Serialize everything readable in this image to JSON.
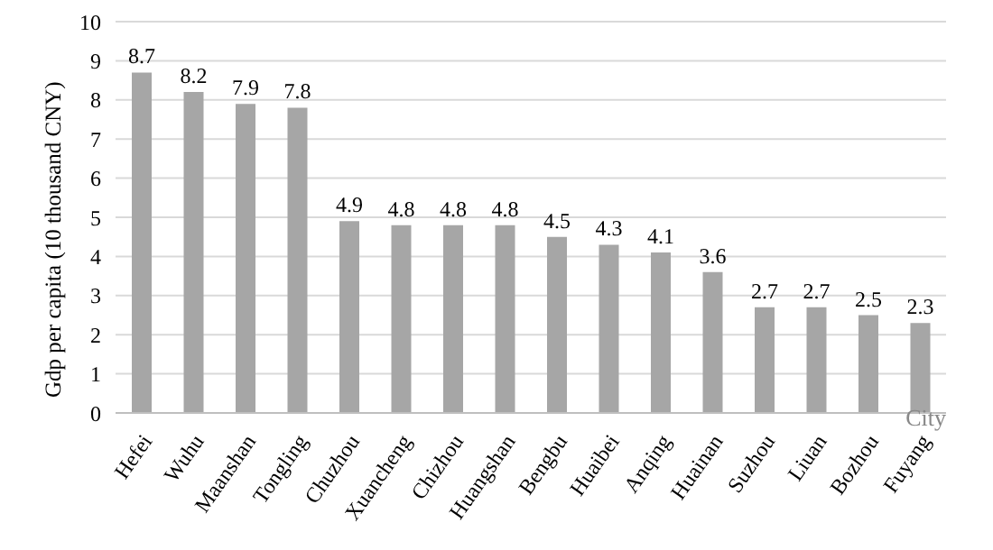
{
  "chart_data": {
    "type": "bar",
    "xlabel": "City",
    "ylabel": "Gdp per capita (10 thousand CNY)",
    "categories": [
      "Hefei",
      "Wuhu",
      "Maanshan",
      "Tongling",
      "Chuzhou",
      "Xuancheng",
      "Chizhou",
      "Huangshan",
      "Bengbu",
      "Huaibei",
      "Anqing",
      "Huainan",
      "Suzhou",
      "Liuan",
      "Bozhou",
      "Fuyang"
    ],
    "values": [
      8.7,
      8.2,
      7.9,
      7.8,
      4.9,
      4.8,
      4.8,
      4.8,
      4.5,
      4.3,
      4.1,
      3.6,
      2.7,
      2.7,
      2.5,
      2.3
    ],
    "color": "#a6a6a6",
    "ylim": [
      0,
      10
    ],
    "yticks": [
      0,
      1,
      2,
      3,
      4,
      5,
      6,
      7,
      8,
      9,
      10
    ],
    "grid": "y",
    "data_labels": true
  }
}
